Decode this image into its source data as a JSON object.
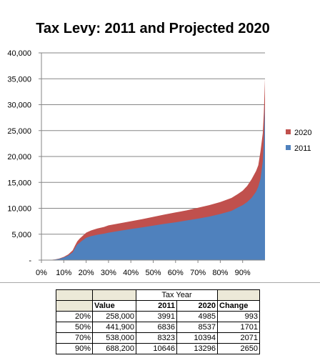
{
  "chart_data": {
    "type": "area",
    "title": "Tax Levy: 2011 and Projected 2020",
    "xlabel": "",
    "ylabel": "",
    "ylim": [
      0,
      40000
    ],
    "x_tick_labels": [
      "0%",
      "10%",
      "20%",
      "30%",
      "40%",
      "50%",
      "60%",
      "70%",
      "80%",
      "90%"
    ],
    "y_tick_labels": [
      "-",
      "5,000",
      "10,000",
      "15,000",
      "20,000",
      "25,000",
      "30,000",
      "35,000",
      "40,000"
    ],
    "y_ticks": [
      0,
      5000,
      10000,
      15000,
      20000,
      25000,
      30000,
      35000,
      40000
    ],
    "x_percent": [
      0,
      3,
      6,
      8,
      10,
      12,
      14,
      15,
      16,
      17,
      18,
      19,
      20,
      22,
      25,
      28,
      30,
      35,
      40,
      45,
      50,
      55,
      60,
      65,
      70,
      75,
      80,
      85,
      88,
      90,
      92,
      94,
      96,
      97,
      98,
      99,
      99.5,
      100
    ],
    "legend_position": "right",
    "grid": true,
    "series": [
      {
        "name": "2011",
        "color": "#4f81bd",
        "values": [
          0,
          0,
          100,
          250,
          500,
          900,
          1500,
          2300,
          3000,
          3300,
          3700,
          4000,
          4300,
          4600,
          4900,
          5100,
          5300,
          5650,
          6000,
          6300,
          6650,
          7000,
          7300,
          7650,
          8000,
          8400,
          8900,
          9500,
          10200,
          10600,
          11200,
          12000,
          13200,
          14200,
          15700,
          19000,
          23000,
          30000
        ]
      },
      {
        "name": "2020",
        "color": "#c0504d",
        "values": [
          0,
          0,
          120,
          300,
          620,
          1100,
          1900,
          2800,
          3600,
          4100,
          4500,
          4900,
          5300,
          5700,
          6100,
          6400,
          6700,
          7100,
          7500,
          7900,
          8350,
          8800,
          9200,
          9600,
          10100,
          10600,
          11200,
          12000,
          12800,
          13400,
          14300,
          15600,
          17200,
          18300,
          21000,
          24500,
          28500,
          35000
        ]
      }
    ]
  },
  "table": {
    "header_group": "Tax Year",
    "col_value": "Value",
    "col_2011": "2011",
    "col_2020": "2020",
    "col_change": "Change",
    "rows": [
      {
        "pct": "20%",
        "value": "258,000",
        "y2011": "3991",
        "y2020": "4985",
        "change": "993"
      },
      {
        "pct": "50%",
        "value": "441,900",
        "y2011": "6836",
        "y2020": "8537",
        "change": "1701"
      },
      {
        "pct": "70%",
        "value": "538,000",
        "y2011": "8323",
        "y2020": "10394",
        "change": "2071"
      },
      {
        "pct": "90%",
        "value": "688,200",
        "y2011": "10646",
        "y2020": "13296",
        "change": "2650"
      }
    ]
  }
}
